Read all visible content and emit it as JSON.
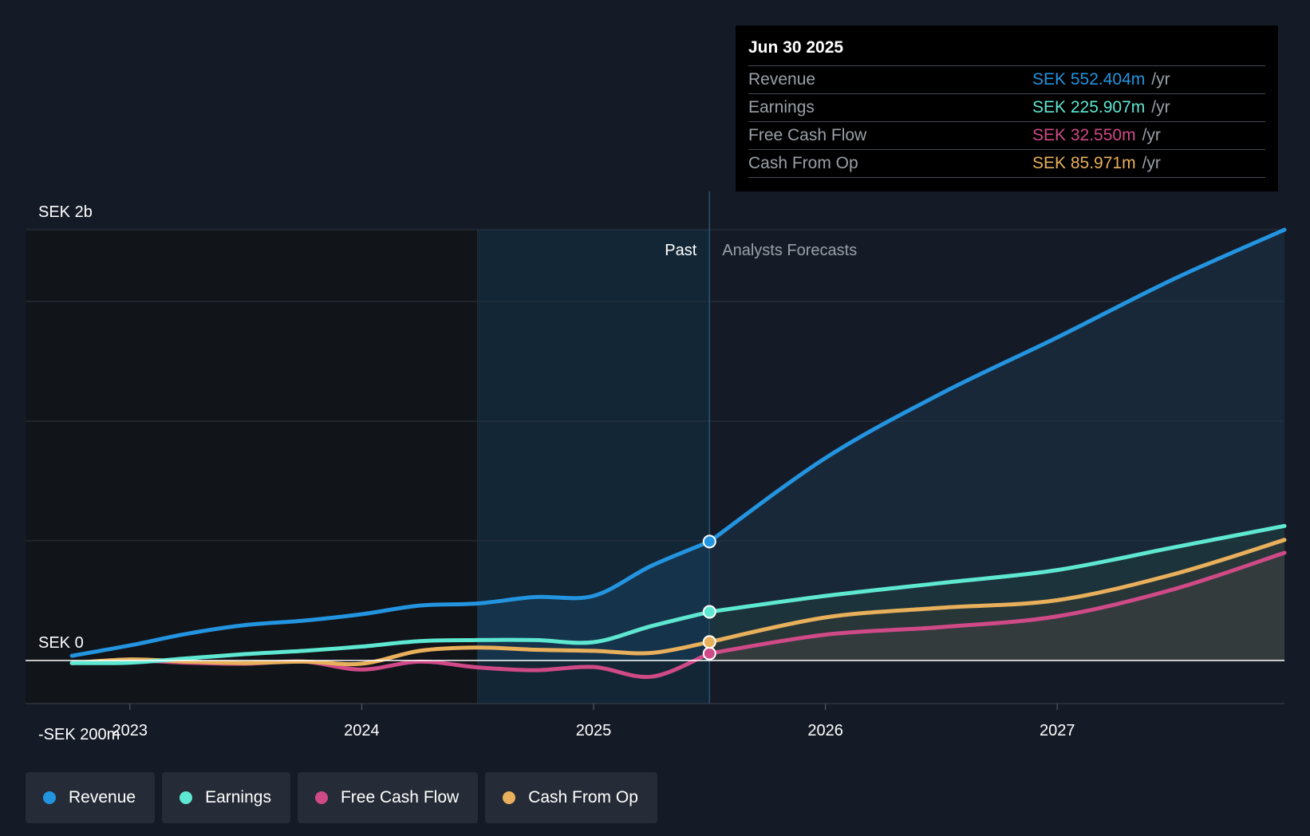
{
  "colors": {
    "revenue": "#2394e0",
    "earnings": "#5ee8d2",
    "fcf": "#cf4a87",
    "cfo": "#e9b05c",
    "background": "#151b26",
    "past_background": "#111419",
    "highlight": "#16344c"
  },
  "tooltip": {
    "date": "Jun 30 2025",
    "rows": [
      {
        "label": "Revenue",
        "value": "SEK 552.404m",
        "unit": "/yr"
      },
      {
        "label": "Earnings",
        "value": "SEK 225.907m",
        "unit": "/yr"
      },
      {
        "label": "Free Cash Flow",
        "value": "SEK 32.550m",
        "unit": "/yr"
      },
      {
        "label": "Cash From Op",
        "value": "SEK 85.971m",
        "unit": "/yr"
      }
    ]
  },
  "legend": [
    {
      "label": "Revenue",
      "key": "revenue"
    },
    {
      "label": "Earnings",
      "key": "earnings"
    },
    {
      "label": "Free Cash Flow",
      "key": "fcf"
    },
    {
      "label": "Cash From Op",
      "key": "cfo"
    }
  ],
  "chart_data": {
    "type": "line",
    "title": "",
    "region_labels": {
      "past": "Past",
      "forecast": "Analysts Forecasts"
    },
    "y_labels": [
      {
        "value": 2000,
        "text": "SEK 2b"
      },
      {
        "value": 0,
        "text": "SEK 0"
      },
      {
        "value": -200,
        "text": "-SEK 200m"
      }
    ],
    "ylim": [
      -200,
      2000
    ],
    "xlim": [
      2022.55,
      2027.98
    ],
    "x_ticks": [
      {
        "value": 2023,
        "label": "2023"
      },
      {
        "value": 2024,
        "label": "2024"
      },
      {
        "value": 2025,
        "label": "2025"
      },
      {
        "value": 2026,
        "label": "2026"
      },
      {
        "value": 2027,
        "label": "2027"
      }
    ],
    "gridlines": [
      2000,
      1667,
      1111,
      556,
      0
    ],
    "highlight_start": 2024.5,
    "current_date": 2025.5,
    "series": [
      {
        "name": "Revenue",
        "key": "revenue",
        "points": [
          [
            2022.75,
            22
          ],
          [
            2023.0,
            70
          ],
          [
            2023.25,
            125
          ],
          [
            2023.5,
            165
          ],
          [
            2023.75,
            185
          ],
          [
            2024.0,
            215
          ],
          [
            2024.25,
            255
          ],
          [
            2024.5,
            265
          ],
          [
            2024.75,
            295
          ],
          [
            2025.0,
            300
          ],
          [
            2025.25,
            440
          ],
          [
            2025.5,
            552
          ]
        ],
        "forecast": [
          [
            2025.5,
            552
          ],
          [
            2026.0,
            940
          ],
          [
            2026.5,
            1240
          ],
          [
            2027.0,
            1500
          ],
          [
            2027.5,
            1770
          ],
          [
            2027.98,
            2000
          ]
        ],
        "current": 552.404
      },
      {
        "name": "Earnings",
        "key": "earnings",
        "points": [
          [
            2022.75,
            -12
          ],
          [
            2023.0,
            -10
          ],
          [
            2023.25,
            10
          ],
          [
            2023.5,
            30
          ],
          [
            2023.75,
            45
          ],
          [
            2024.0,
            65
          ],
          [
            2024.25,
            90
          ],
          [
            2024.5,
            95
          ],
          [
            2024.75,
            95
          ],
          [
            2025.0,
            85
          ],
          [
            2025.25,
            160
          ],
          [
            2025.5,
            226
          ]
        ],
        "forecast": [
          [
            2025.5,
            226
          ],
          [
            2026.0,
            300
          ],
          [
            2026.5,
            360
          ],
          [
            2027.0,
            420
          ],
          [
            2027.5,
            525
          ],
          [
            2027.98,
            625
          ]
        ],
        "current": 225.907
      },
      {
        "name": "Free Cash Flow",
        "key": "fcf",
        "points": [
          [
            2022.75,
            -12
          ],
          [
            2023.0,
            0
          ],
          [
            2023.25,
            -10
          ],
          [
            2023.5,
            -15
          ],
          [
            2023.75,
            -5
          ],
          [
            2024.0,
            -42
          ],
          [
            2024.25,
            -5
          ],
          [
            2024.5,
            -32
          ],
          [
            2024.75,
            -45
          ],
          [
            2025.0,
            -30
          ],
          [
            2025.25,
            -75
          ],
          [
            2025.5,
            33
          ]
        ],
        "forecast": [
          [
            2025.5,
            33
          ],
          [
            2026.0,
            120
          ],
          [
            2026.5,
            155
          ],
          [
            2027.0,
            205
          ],
          [
            2027.5,
            330
          ],
          [
            2027.98,
            500
          ]
        ],
        "current": 32.55
      },
      {
        "name": "Cash From Op",
        "key": "cfo",
        "points": [
          [
            2022.75,
            -12
          ],
          [
            2023.0,
            5
          ],
          [
            2023.25,
            -5
          ],
          [
            2023.5,
            -12
          ],
          [
            2023.75,
            -5
          ],
          [
            2024.0,
            -15
          ],
          [
            2024.25,
            45
          ],
          [
            2024.5,
            60
          ],
          [
            2024.75,
            50
          ],
          [
            2025.0,
            45
          ],
          [
            2025.25,
            35
          ],
          [
            2025.5,
            86
          ]
        ],
        "forecast": [
          [
            2025.5,
            86
          ],
          [
            2026.0,
            200
          ],
          [
            2026.5,
            245
          ],
          [
            2027.0,
            280
          ],
          [
            2027.5,
            400
          ],
          [
            2027.98,
            560
          ]
        ],
        "current": 85.971
      }
    ]
  }
}
